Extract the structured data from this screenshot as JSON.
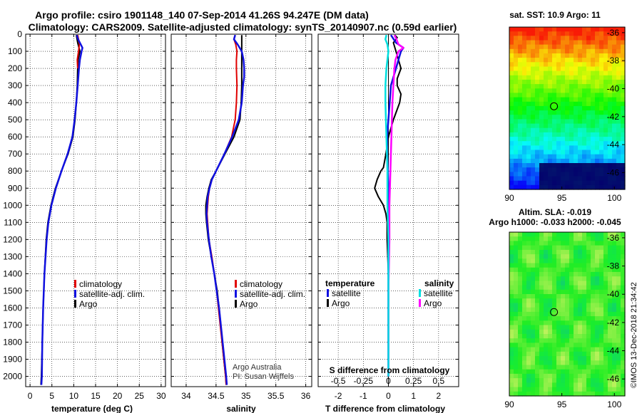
{
  "titles": {
    "line1": "Argo profile: csiro 1901148_140 07-Sep-2014 41.26S 94.247E (DM data)",
    "line2": "Climatology: CARS2009. Satellite-adjusted climatology: synTS_20140907.nc (0.59d earlier)"
  },
  "colors": {
    "climatology": "#e00000",
    "satellite": "#1010e0",
    "argo": "#000000",
    "sat_salinity": "#00e0e0",
    "argo_salinity": "#ff00ff"
  },
  "chart_data": [
    {
      "type": "line",
      "name": "temperature",
      "xlabel": "temperature (deg C)",
      "xlim": [
        -1,
        31
      ],
      "ylim": [
        2060,
        0
      ],
      "xticks": [
        0,
        5,
        10,
        15,
        20,
        25,
        30
      ],
      "yticks": [
        0,
        100,
        200,
        300,
        400,
        500,
        600,
        700,
        800,
        900,
        1000,
        1100,
        1200,
        1300,
        1400,
        1500,
        1600,
        1700,
        1800,
        1900,
        2000
      ],
      "legend": [
        "climatology",
        "satellite-adj. clim.",
        "Argo"
      ],
      "series": [
        {
          "name": "climatology",
          "depth": [
            5,
            30,
            60,
            100,
            150,
            200
          ],
          "values": [
            10.9,
            11.1,
            11.3,
            11.1,
            10.8,
            10.9
          ]
        },
        {
          "name": "Argo",
          "depth": [
            5,
            50,
            100,
            150,
            200,
            300,
            400,
            500,
            600,
            700,
            800,
            900,
            1000,
            1100,
            1200,
            1400,
            1600,
            1800,
            2000,
            2050
          ],
          "values": [
            10.6,
            10.9,
            11.4,
            11.0,
            10.9,
            10.8,
            10.6,
            10.3,
            9.8,
            8.7,
            7.2,
            5.8,
            4.8,
            4.1,
            3.7,
            3.3,
            3.0,
            2.8,
            2.6,
            2.5
          ]
        },
        {
          "name": "satellite-adj. clim.",
          "depth": [
            5,
            30,
            60,
            80,
            100,
            150,
            200,
            300,
            400,
            500,
            600,
            700,
            800,
            900,
            1000,
            1100,
            1200,
            1400,
            1600,
            1800,
            2000,
            2050
          ],
          "values": [
            10.7,
            11.0,
            11.6,
            12.0,
            11.8,
            11.4,
            11.2,
            10.9,
            10.6,
            10.2,
            9.7,
            8.6,
            7.2,
            5.9,
            4.9,
            4.2,
            3.8,
            3.3,
            3.0,
            2.8,
            2.7,
            2.6
          ]
        }
      ]
    },
    {
      "type": "line",
      "name": "salinity",
      "xlabel": "salinity",
      "xlim": [
        33.75,
        36.1
      ],
      "ylim": [
        2060,
        0
      ],
      "xticks": [
        34,
        34.5,
        35,
        35.5,
        36
      ],
      "legend": [
        "climatology",
        "satellite-adj. clim.",
        "Argo"
      ],
      "annotations": [
        "Argo Australia",
        "PI: Susan Wijffels"
      ],
      "series": [
        {
          "name": "Argo",
          "depth": [
            5,
            50,
            100,
            200,
            300,
            400,
            500,
            600,
            700,
            800,
            850,
            900,
            950,
            1000,
            1050,
            1100,
            1200,
            1300,
            1400,
            1500,
            1600,
            1700,
            1800,
            1900,
            2000,
            2050
          ],
          "values": [
            34.93,
            34.93,
            34.93,
            34.93,
            34.93,
            34.92,
            34.9,
            34.8,
            34.65,
            34.5,
            34.42,
            34.38,
            34.35,
            34.33,
            34.33,
            34.34,
            34.37,
            34.42,
            34.47,
            34.52,
            34.55,
            34.58,
            34.6,
            34.63,
            34.66,
            34.67
          ]
        },
        {
          "name": "climatology",
          "depth": [
            5,
            30,
            60,
            100,
            150,
            200,
            300,
            400,
            500,
            600,
            700,
            800,
            850,
            900,
            950,
            1000,
            1050,
            1100,
            1200,
            1300,
            1400,
            1500,
            1600,
            1700,
            1800,
            1900,
            2000,
            2050
          ],
          "values": [
            34.82,
            34.8,
            34.83,
            34.85,
            34.84,
            34.84,
            34.85,
            34.84,
            34.82,
            34.76,
            34.64,
            34.5,
            34.43,
            34.39,
            34.37,
            34.36,
            34.35,
            34.36,
            34.38,
            34.43,
            34.47,
            34.51,
            34.54,
            34.57,
            34.6,
            34.63,
            34.66,
            34.67
          ]
        },
        {
          "name": "satellite-adj. clim.",
          "depth": [
            5,
            30,
            60,
            100,
            150,
            200,
            250,
            300,
            400,
            500,
            600,
            700,
            800,
            850,
            900,
            950,
            1000,
            1050,
            1100,
            1200,
            1300,
            1400,
            1500,
            1600,
            1700,
            1800,
            1900,
            2000,
            2050
          ],
          "values": [
            34.82,
            34.8,
            34.86,
            34.93,
            34.96,
            34.97,
            34.97,
            34.95,
            34.93,
            34.88,
            34.77,
            34.64,
            34.5,
            34.43,
            34.39,
            34.36,
            34.35,
            34.34,
            34.35,
            34.38,
            34.42,
            34.47,
            34.51,
            34.55,
            34.58,
            34.61,
            34.64,
            34.67,
            34.68
          ]
        }
      ]
    },
    {
      "type": "line",
      "name": "difference from climatology",
      "xlabel": "T difference from climatology",
      "xlabel_top": "S difference from climatology",
      "xlim": [
        -2.8,
        2.8
      ],
      "ylim": [
        2060,
        0
      ],
      "xticks": [
        -2,
        -1,
        0,
        1,
        2
      ],
      "xticks_top": [
        "-0.5",
        "-0.25",
        "0",
        "0.25",
        "0.5"
      ],
      "legend_temperature": [
        "temperature",
        "satellite",
        "Argo"
      ],
      "legend_salinity": [
        "salinity",
        "satellite",
        "Argo"
      ],
      "series": [
        {
          "name": "T satellite",
          "depth": [
            5,
            50,
            80,
            100,
            150,
            200,
            300,
            400,
            500,
            600,
            700,
            800,
            900,
            1000,
            1200,
            1500,
            2000
          ],
          "values": [
            0.1,
            0.3,
            0.6,
            0.5,
            0.4,
            0.3,
            0.1,
            0.05,
            0,
            -0.05,
            -0.05,
            -0.02,
            0,
            0,
            0,
            0,
            0
          ]
        },
        {
          "name": "T Argo",
          "depth": [
            5,
            20,
            50,
            100,
            150,
            200,
            260,
            300,
            350,
            400,
            500,
            600,
            700,
            780,
            800,
            850,
            900,
            950,
            1000,
            1050,
            1100,
            1200,
            1400,
            1600,
            1800,
            2000
          ],
          "values": [
            0.25,
            0.35,
            0.2,
            0.3,
            0.4,
            0.5,
            0.35,
            0.35,
            0.5,
            0.45,
            0.2,
            0,
            -0.1,
            -0.2,
            -0.3,
            -0.45,
            -0.55,
            -0.4,
            -0.2,
            -0.1,
            -0.05,
            -0.05,
            0,
            0,
            0,
            0
          ]
        },
        {
          "name": "S satellite",
          "depth": [
            5,
            30,
            60,
            100,
            150,
            200,
            300,
            400,
            600,
            800,
            1000,
            1200,
            1500,
            1800,
            2000
          ],
          "values": [
            -0.02,
            -0.03,
            -0.01,
            0.0,
            -0.01,
            -0.02,
            -0.03,
            -0.03,
            -0.02,
            -0.01,
            -0.01,
            0,
            0,
            0,
            0
          ]
        },
        {
          "name": "S Argo",
          "depth": [
            5,
            30,
            60,
            80,
            100,
            150,
            200,
            300,
            400,
            600,
            800,
            1000,
            1200,
            1500,
            1800,
            2000
          ],
          "values": [
            0.06,
            0.08,
            0.1,
            0.15,
            0.1,
            0.07,
            0.06,
            0.05,
            0.04,
            0.03,
            0.02,
            0.01,
            0.01,
            0,
            0,
            0
          ]
        }
      ]
    },
    {
      "type": "heatmap",
      "name": "sst map",
      "title": "sat. SST: 10.9 Argo: 11",
      "xlim": [
        90,
        101
      ],
      "ylim": [
        -47.2,
        -35.6
      ],
      "xticks": [
        90,
        95,
        100
      ],
      "yticks": [
        -36,
        -38,
        -40,
        -42,
        -44,
        -46
      ],
      "marker": {
        "lon": 94.25,
        "lat": -41.26
      }
    },
    {
      "type": "heatmap",
      "name": "sla map",
      "title_line1": "Altim. SLA: -0.019",
      "title_line2": "Argo h1000: -0.033 h2000: -0.045",
      "xlim": [
        90,
        101
      ],
      "ylim": [
        -47.2,
        -35.6
      ],
      "xticks": [
        90,
        95,
        100
      ],
      "yticks": [
        -36,
        -38,
        -40,
        -42,
        -44,
        -46
      ],
      "marker": {
        "lon": 94.25,
        "lat": -41.26
      }
    }
  ],
  "footer": "©IMOS 13-Dec-2018 21:34:42"
}
